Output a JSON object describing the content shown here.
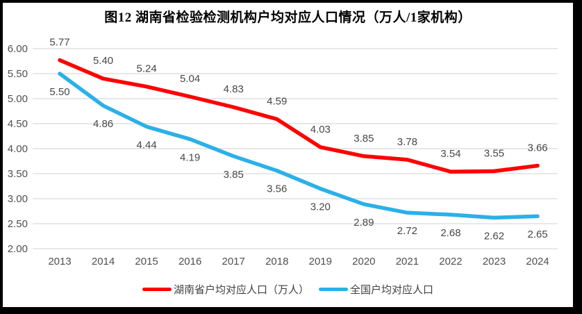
{
  "title": "图12 湖南省检验检测机构户均对应人口情况（万人/1家机构）",
  "legend": {
    "items": [
      {
        "label": "湖南省户均对应人口（万人）",
        "color": "#ff0000"
      },
      {
        "label": "全国户均对应人口",
        "color": "#2bb0e8"
      }
    ]
  },
  "chart_data": {
    "type": "line",
    "title": "图12 湖南省检验检测机构户均对应人口情况（万人/1家机构）",
    "categories": [
      "2013",
      "2014",
      "2015",
      "2016",
      "2017",
      "2018",
      "2019",
      "2020",
      "2021",
      "2022",
      "2023",
      "2024"
    ],
    "series": [
      {
        "name": "湖南省户均对应人口（万人）",
        "color": "#ff0000",
        "values": [
          5.77,
          5.4,
          5.24,
          5.04,
          4.83,
          4.59,
          4.03,
          3.85,
          3.78,
          3.54,
          3.55,
          3.66
        ],
        "labels": [
          "5.77",
          "5.40",
          "5.24",
          "5.04",
          "4.83",
          "4.59",
          "4.03",
          "3.85",
          "3.78",
          "3.54",
          "3.55",
          "3.66"
        ],
        "label_position": "above"
      },
      {
        "name": "全国户均对应人口",
        "color": "#2bb0e8",
        "values": [
          5.5,
          4.86,
          4.44,
          4.19,
          3.85,
          3.56,
          3.2,
          2.89,
          2.72,
          2.68,
          2.62,
          2.65
        ],
        "labels": [
          "5.50",
          "4.86",
          "4.44",
          "4.19",
          "3.85",
          "3.56",
          "3.20",
          "2.89",
          "2.72",
          "2.68",
          "2.62",
          "2.65"
        ],
        "label_position": "below"
      }
    ],
    "xlabel": "",
    "ylabel": "",
    "ylim": [
      2.0,
      6.0
    ],
    "ytick_step": 0.5,
    "ytick_labels": [
      "6.00",
      "5.50",
      "5.00",
      "4.50",
      "4.00",
      "3.50",
      "3.00",
      "2.50",
      "2.00"
    ],
    "grid": true,
    "gridline_color": "#d9d9d9",
    "axis_text_color": "#4f4f4f",
    "legend_position": "bottom",
    "line_width": 5.5
  }
}
